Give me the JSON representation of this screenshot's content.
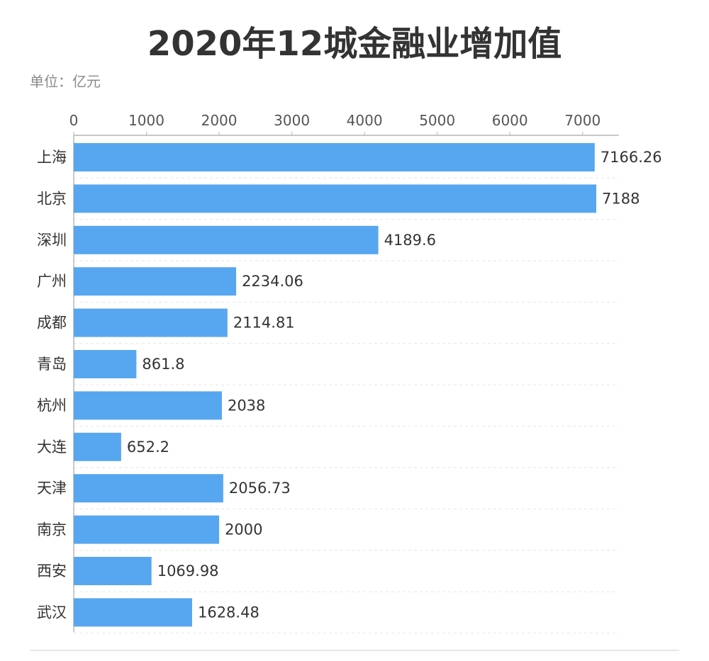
{
  "chart_data": {
    "type": "bar",
    "orientation": "horizontal",
    "title": "2020年12城金融业增加值",
    "unit_label": "单位：亿元",
    "categories": [
      "上海",
      "北京",
      "深圳",
      "广州",
      "成都",
      "青岛",
      "杭州",
      "大连",
      "天津",
      "南京",
      "西安",
      "武汉"
    ],
    "values": [
      7166.26,
      7188,
      4189.6,
      2234.06,
      2114.81,
      861.8,
      2038,
      652.2,
      2056.73,
      2000,
      1069.98,
      1628.48
    ],
    "value_labels": [
      "7166.26",
      "7188",
      "4189.6",
      "2234.06",
      "2114.81",
      "861.8",
      "2038",
      "652.2",
      "2056.73",
      "2000",
      "1069.98",
      "1628.48"
    ],
    "xticks": [
      0,
      1000,
      2000,
      3000,
      4000,
      5000,
      6000,
      7000
    ],
    "xlim": [
      0,
      7500
    ],
    "axis_position": "top",
    "grid": true,
    "bar_color": "#57a6f0"
  }
}
